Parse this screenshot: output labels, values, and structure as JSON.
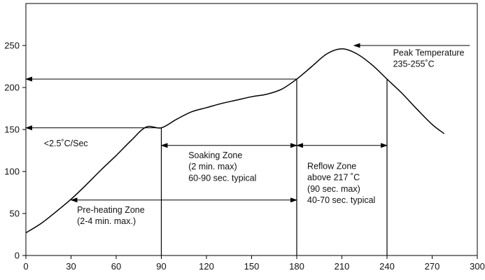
{
  "chart_data": {
    "type": "line",
    "title": "",
    "xlabel": "",
    "ylabel": "",
    "xlim": [
      0,
      300
    ],
    "ylim": [
      0,
      300
    ],
    "x_ticks": [
      0,
      30,
      60,
      90,
      120,
      150,
      180,
      210,
      240,
      270,
      300
    ],
    "y_ticks": [
      0,
      50,
      100,
      150,
      200,
      250
    ],
    "grid": false,
    "series": [
      {
        "x": [
          0,
          10,
          20,
          30,
          40,
          50,
          60,
          70,
          80,
          90,
          100,
          110,
          120,
          130,
          140,
          150,
          160,
          170,
          180,
          190,
          200,
          210,
          220,
          230,
          240,
          250,
          260,
          270,
          278
        ],
        "y": [
          27,
          38,
          52,
          67,
          84,
          102,
          119,
          137,
          153,
          152,
          162,
          171,
          176,
          181,
          185,
          189,
          192,
          198,
          210,
          225,
          240,
          246,
          240,
          227,
          210,
          193,
          174,
          156,
          145
        ]
      }
    ],
    "guide_lines": [
      {
        "kind": "vertical",
        "x": 90,
        "y_from": 0,
        "y_to": 152
      },
      {
        "kind": "vertical",
        "x": 180,
        "y_from": 0,
        "y_to": 210
      },
      {
        "kind": "vertical",
        "x": 240,
        "y_from": 0,
        "y_to": 210
      }
    ],
    "arrows": [
      {
        "from": [
          180,
          210
        ],
        "to": [
          0,
          210
        ]
      },
      {
        "from": [
          90,
          152
        ],
        "to": [
          0,
          152
        ]
      },
      {
        "from": [
          295,
          250
        ],
        "to": [
          218,
          250
        ]
      },
      {
        "from": [
          90,
          131
        ],
        "to": [
          180,
          131
        ],
        "both_ends": true
      },
      {
        "from": [
          180,
          131
        ],
        "to": [
          240,
          131
        ],
        "both_ends": true
      },
      {
        "from": [
          30,
          66
        ],
        "to": [
          180,
          66
        ],
        "both_ends": true
      }
    ],
    "annotations": [
      {
        "id": "peak",
        "lines": [
          "Peak Temperature",
          "235-255˚C"
        ],
        "x": 244,
        "y": 238
      },
      {
        "id": "ramp",
        "lines": [
          "<2.5˚C/Sec"
        ],
        "x": 12,
        "y": 130
      },
      {
        "id": "soak",
        "lines": [
          "Soaking Zone",
          "(2 min. max)",
          "60-90 sec. typical"
        ],
        "x": 108,
        "y": 116
      },
      {
        "id": "reflow",
        "lines": [
          "Reflow Zone",
          "above 217 ˚C",
          "(90 sec. max)",
          "40-70 sec. typical"
        ],
        "x": 187,
        "y": 103
      },
      {
        "id": "preheat",
        "lines": [
          "Pre-heating Zone",
          "(2-4 min. max.)"
        ],
        "x": 34,
        "y": 51
      }
    ]
  }
}
